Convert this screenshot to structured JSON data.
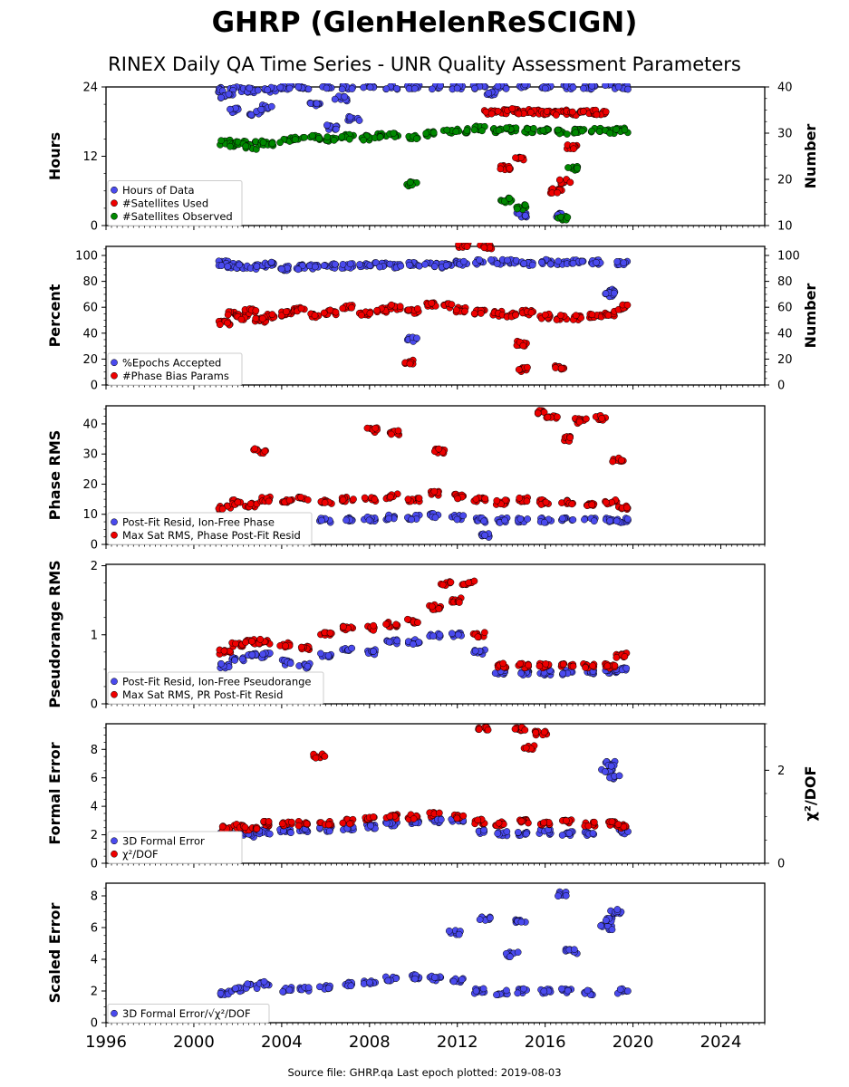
{
  "title": "GHRP (GlenHelenReSCIGN)",
  "subtitle": "RINEX Daily QA Time Series - UNR Quality Assessment Parameters",
  "footer": "Source file: GHRP.qa Last epoch plotted: 2019-08-03",
  "colors": {
    "blue": "#4a4aee",
    "red": "#ee0000",
    "green": "#008800",
    "edge": "#000000"
  },
  "x_axis": {
    "range": [
      1996,
      2026
    ],
    "ticks": [
      1996,
      2000,
      2004,
      2008,
      2012,
      2016,
      2020,
      2024
    ],
    "tick_labels": [
      "1996",
      "2000",
      "2004",
      "2008",
      "2012",
      "2016",
      "2020",
      "2024"
    ]
  },
  "chart_data": [
    {
      "type": "scatter",
      "ylabel": "Hours",
      "ylim": [
        0,
        24
      ],
      "yticks": [
        0,
        12,
        24
      ],
      "y2label": "Number",
      "y2lim": [
        10,
        40
      ],
      "y2ticks": [
        10,
        20,
        30,
        40
      ],
      "legend": "lower-left",
      "series": [
        {
          "name": "Hours of Data",
          "color": "blue",
          "axis": "left",
          "x": [
            2001.4,
            2002.0,
            2002.7,
            2003.5,
            2004.2,
            2005.0,
            2006.0,
            2007.0,
            2008.0,
            2009.0,
            2010.0,
            2011.0,
            2012.0,
            2013.0,
            2014.0,
            2015.0,
            2016.0,
            2017.0,
            2018.0,
            2019.0,
            2019.5,
            2001.8,
            2002.8,
            2003.3,
            2005.5,
            2006.3,
            2006.7,
            2007.3,
            2014.9,
            2016.7,
            2001.5,
            2013.5
          ],
          "y": [
            23.5,
            23.6,
            23.4,
            23.5,
            24.0,
            24.0,
            24.0,
            24.0,
            24.0,
            24.0,
            24.0,
            24.0,
            24.0,
            24.0,
            24.0,
            24.0,
            24.0,
            24.0,
            24.0,
            24.0,
            24.0,
            20.0,
            19.5,
            20.5,
            21.0,
            17.0,
            22.0,
            18.5,
            1.8,
            1.7,
            22.5,
            22.8
          ]
        },
        {
          "name": "#Satellites Used",
          "color": "red",
          "axis": "right",
          "x": [
            2013.5,
            2014.0,
            2014.5,
            2015.0,
            2015.5,
            2016.0,
            2016.5,
            2017.0,
            2017.5,
            2018.0,
            2018.5,
            2014.8,
            2016.5,
            2016.9,
            2017.2,
            2014.2
          ],
          "y": [
            34.5,
            34.6,
            34.8,
            34.5,
            34.6,
            34.5,
            34.3,
            34.5,
            34.4,
            34.6,
            34.5,
            24.5,
            17.5,
            19.5,
            27.0,
            22.5
          ]
        },
        {
          "name": "#Satellites Observed",
          "color": "green",
          "axis": "right",
          "x": [
            2001.4,
            2001.8,
            2002.2,
            2002.6,
            2003.0,
            2003.4,
            2004.2,
            2004.8,
            2005.5,
            2006.2,
            2007.0,
            2007.8,
            2008.5,
            2009.2,
            2010.0,
            2010.8,
            2011.5,
            2012.2,
            2013.0,
            2013.8,
            2014.5,
            2015.2,
            2016.0,
            2016.8,
            2017.5,
            2018.3,
            2019.0,
            2019.5,
            2009.9,
            2014.2,
            2014.9,
            2016.8,
            2017.3
          ],
          "y": [
            28.0,
            27.5,
            27.8,
            27.0,
            28.0,
            27.6,
            28.5,
            28.8,
            29.0,
            28.7,
            29.2,
            29.0,
            29.4,
            29.5,
            29.3,
            29.8,
            30.2,
            30.5,
            31.0,
            30.5,
            30.8,
            30.6,
            30.5,
            30.3,
            30.5,
            30.6,
            30.4,
            30.6,
            19.0,
            15.5,
            14.0,
            11.5,
            22.5
          ]
        }
      ]
    },
    {
      "type": "scatter",
      "ylabel": "Percent",
      "ylim": [
        0,
        107
      ],
      "yticks": [
        0,
        20,
        40,
        60,
        80,
        100
      ],
      "y2label": "Number",
      "y2lim": [
        0,
        107
      ],
      "y2ticks": [
        0,
        20,
        40,
        60,
        80,
        100
      ],
      "legend": "lower-left",
      "series": [
        {
          "name": "%Epochs Accepted",
          "color": "blue",
          "axis": "left",
          "x": [
            2001.4,
            2001.8,
            2002.2,
            2002.6,
            2003.0,
            2003.4,
            2004.2,
            2004.8,
            2005.5,
            2006.2,
            2007.0,
            2007.8,
            2008.5,
            2009.2,
            2010.0,
            2010.8,
            2011.5,
            2012.2,
            2013.0,
            2013.8,
            2014.5,
            2015.2,
            2016.0,
            2016.8,
            2017.5,
            2018.3,
            2018.9,
            2019.0,
            2019.5,
            2009.9
          ],
          "y": [
            94,
            92,
            91,
            92,
            91,
            93,
            90,
            91,
            91,
            92,
            92,
            92,
            93,
            92,
            93,
            93,
            92,
            94,
            95,
            95,
            95,
            94,
            95,
            94,
            95,
            95,
            72,
            70,
            94,
            35
          ]
        },
        {
          "name": "#Phase Bias Params",
          "color": "red",
          "axis": "right",
          "x": [
            2001.4,
            2001.8,
            2002.2,
            2002.6,
            2003.0,
            2003.4,
            2004.2,
            2004.8,
            2005.5,
            2006.2,
            2007.0,
            2007.8,
            2008.5,
            2009.2,
            2010.0,
            2010.8,
            2011.5,
            2012.2,
            2013.0,
            2013.8,
            2014.5,
            2015.2,
            2016.0,
            2016.8,
            2017.5,
            2018.3,
            2019.0,
            2019.5,
            2009.8,
            2014.9,
            2015.0,
            2016.7,
            2012.3,
            2013.3
          ],
          "y": [
            48,
            55,
            52,
            57,
            50,
            53,
            55,
            58,
            54,
            56,
            60,
            55,
            58,
            60,
            57,
            62,
            61,
            58,
            56,
            55,
            54,
            56,
            53,
            52,
            52,
            53,
            55,
            60,
            18,
            32,
            12,
            14,
            108,
            107
          ]
        }
      ]
    },
    {
      "type": "scatter",
      "ylabel": "Phase RMS",
      "ylim": [
        0,
        46
      ],
      "yticks": [
        0,
        10,
        20,
        30,
        40
      ],
      "legend": "lower-left",
      "series": [
        {
          "name": "Post-Fit Resid, Ion-Free Phase",
          "color": "blue",
          "x": [
            2001.4,
            2002.0,
            2002.6,
            2003.2,
            2004.2,
            2005.0,
            2006.0,
            2007.0,
            2008.0,
            2009.0,
            2010.0,
            2011.0,
            2012.0,
            2013.0,
            2014.0,
            2015.0,
            2016.0,
            2017.0,
            2018.0,
            2019.0,
            2019.5,
            2013.3
          ],
          "y": [
            8,
            8,
            8,
            8,
            8,
            8,
            8,
            8.5,
            8.5,
            9,
            9,
            9.5,
            9,
            8,
            8,
            8,
            8,
            8,
            8,
            8,
            8,
            3
          ]
        },
        {
          "name": "Max Sat RMS, Phase Post-Fit Resid",
          "color": "red",
          "x": [
            2001.4,
            2002.0,
            2002.6,
            2003.2,
            2004.2,
            2005.0,
            2006.0,
            2007.0,
            2008.0,
            2009.0,
            2010.0,
            2011.0,
            2012.0,
            2013.0,
            2014.0,
            2015.0,
            2016.0,
            2017.0,
            2018.0,
            2019.0,
            2019.5,
            2003.0,
            2008.1,
            2009.1,
            2011.2,
            2015.8,
            2016.3,
            2017.1,
            2017.6,
            2018.5,
            2019.3
          ],
          "y": [
            12,
            14,
            13,
            15,
            14,
            15,
            14,
            15,
            15,
            16,
            15,
            17,
            16,
            15,
            14,
            15,
            14,
            14,
            13,
            14,
            12,
            31,
            38,
            37,
            31,
            44,
            42,
            35,
            41,
            42,
            28
          ]
        }
      ]
    },
    {
      "type": "scatter",
      "ylabel": "Pseudorange RMS",
      "ylim": [
        0,
        2.02
      ],
      "yticks": [
        0,
        1,
        2
      ],
      "legend": "lower-left",
      "series": [
        {
          "name": "Post-Fit Resid, Ion-Free Pseudorange",
          "color": "blue",
          "x": [
            2001.4,
            2002.0,
            2002.6,
            2003.2,
            2004.2,
            2005.0,
            2006.0,
            2007.0,
            2008.0,
            2009.0,
            2010.0,
            2011.0,
            2012.0,
            2013.0,
            2014.0,
            2015.0,
            2016.0,
            2017.0,
            2018.0,
            2019.0,
            2019.5
          ],
          "y": [
            0.55,
            0.65,
            0.7,
            0.7,
            0.6,
            0.55,
            0.7,
            0.8,
            0.75,
            0.9,
            0.9,
            1.0,
            1.0,
            0.75,
            0.45,
            0.45,
            0.45,
            0.45,
            0.45,
            0.45,
            0.5
          ]
        },
        {
          "name": "Max Sat RMS, PR Post-Fit Resid",
          "color": "red",
          "x": [
            2001.4,
            2002.0,
            2002.6,
            2003.2,
            2004.2,
            2005.0,
            2006.0,
            2007.0,
            2008.0,
            2009.0,
            2010.0,
            2011.0,
            2011.5,
            2012.0,
            2012.5,
            2013.0,
            2014.0,
            2015.0,
            2016.0,
            2017.0,
            2018.0,
            2019.0,
            2019.5
          ],
          "y": [
            0.75,
            0.85,
            0.9,
            0.9,
            0.85,
            0.8,
            1.0,
            1.1,
            1.1,
            1.15,
            1.2,
            1.4,
            1.75,
            1.5,
            1.75,
            1.0,
            0.55,
            0.55,
            0.55,
            0.55,
            0.55,
            0.55,
            0.7
          ]
        }
      ]
    },
    {
      "type": "scatter",
      "ylabel": "Formal Error",
      "ylim": [
        0,
        9.8
      ],
      "yticks": [
        0,
        2,
        4,
        6,
        8
      ],
      "y2label": "χ²/DOF",
      "y2lim": [
        0,
        3.0
      ],
      "y2ticks": [
        0,
        2
      ],
      "legend": "lower-left",
      "series": [
        {
          "name": "3D Formal Error",
          "color": "blue",
          "axis": "left",
          "x": [
            2001.4,
            2002.0,
            2002.6,
            2003.2,
            2004.2,
            2005.0,
            2006.0,
            2007.0,
            2008.0,
            2009.0,
            2010.0,
            2011.0,
            2012.0,
            2013.0,
            2014.0,
            2015.0,
            2016.0,
            2017.0,
            2018.0,
            2018.8,
            2019.0,
            2019.2,
            2019.5
          ],
          "y": [
            2.0,
            2.1,
            2.0,
            2.2,
            2.3,
            2.3,
            2.4,
            2.5,
            2.6,
            2.8,
            2.9,
            3.0,
            3.0,
            2.2,
            2.1,
            2.1,
            2.2,
            2.1,
            2.1,
            6.5,
            7.0,
            6.0,
            2.2
          ]
        },
        {
          "name": "χ²/DOF",
          "color": "red",
          "axis": "right",
          "x": [
            2001.4,
            2002.0,
            2002.6,
            2003.2,
            2004.2,
            2005.0,
            2006.0,
            2007.0,
            2008.0,
            2009.0,
            2010.0,
            2011.0,
            2012.0,
            2013.0,
            2014.0,
            2015.0,
            2016.0,
            2017.0,
            2018.0,
            2019.0,
            2019.5,
            2005.7,
            2013.2,
            2014.9,
            2015.3,
            2015.8
          ],
          "y": [
            0.75,
            0.8,
            0.75,
            0.85,
            0.85,
            0.85,
            0.85,
            0.9,
            0.95,
            1.0,
            1.0,
            1.05,
            1.0,
            0.9,
            0.85,
            0.9,
            0.85,
            0.9,
            0.85,
            0.85,
            0.8,
            2.3,
            2.9,
            2.9,
            2.5,
            2.8
          ]
        }
      ]
    },
    {
      "type": "scatter",
      "ylabel": "Scaled Error",
      "ylim": [
        0,
        8.8
      ],
      "yticks": [
        0,
        2,
        4,
        6,
        8
      ],
      "legend": "lower-left",
      "series": [
        {
          "name": "3D Formal Error/√χ²/DOF",
          "color": "blue",
          "x": [
            2001.4,
            2002.0,
            2002.6,
            2003.2,
            2004.2,
            2005.0,
            2006.0,
            2007.0,
            2008.0,
            2009.0,
            2010.0,
            2011.0,
            2012.0,
            2013.0,
            2014.0,
            2015.0,
            2016.0,
            2017.0,
            2018.0,
            2018.8,
            2019.0,
            2019.2,
            2019.5,
            2011.9,
            2013.3,
            2014.5,
            2014.9,
            2016.7,
            2017.2
          ],
          "y": [
            1.9,
            2.1,
            2.3,
            2.5,
            2.1,
            2.1,
            2.2,
            2.4,
            2.6,
            2.8,
            2.9,
            2.8,
            2.7,
            2.0,
            1.9,
            2.0,
            2.0,
            2.0,
            1.9,
            6.0,
            6.5,
            7.0,
            2.0,
            5.7,
            6.6,
            4.3,
            6.4,
            8.1,
            4.5
          ]
        }
      ]
    }
  ]
}
